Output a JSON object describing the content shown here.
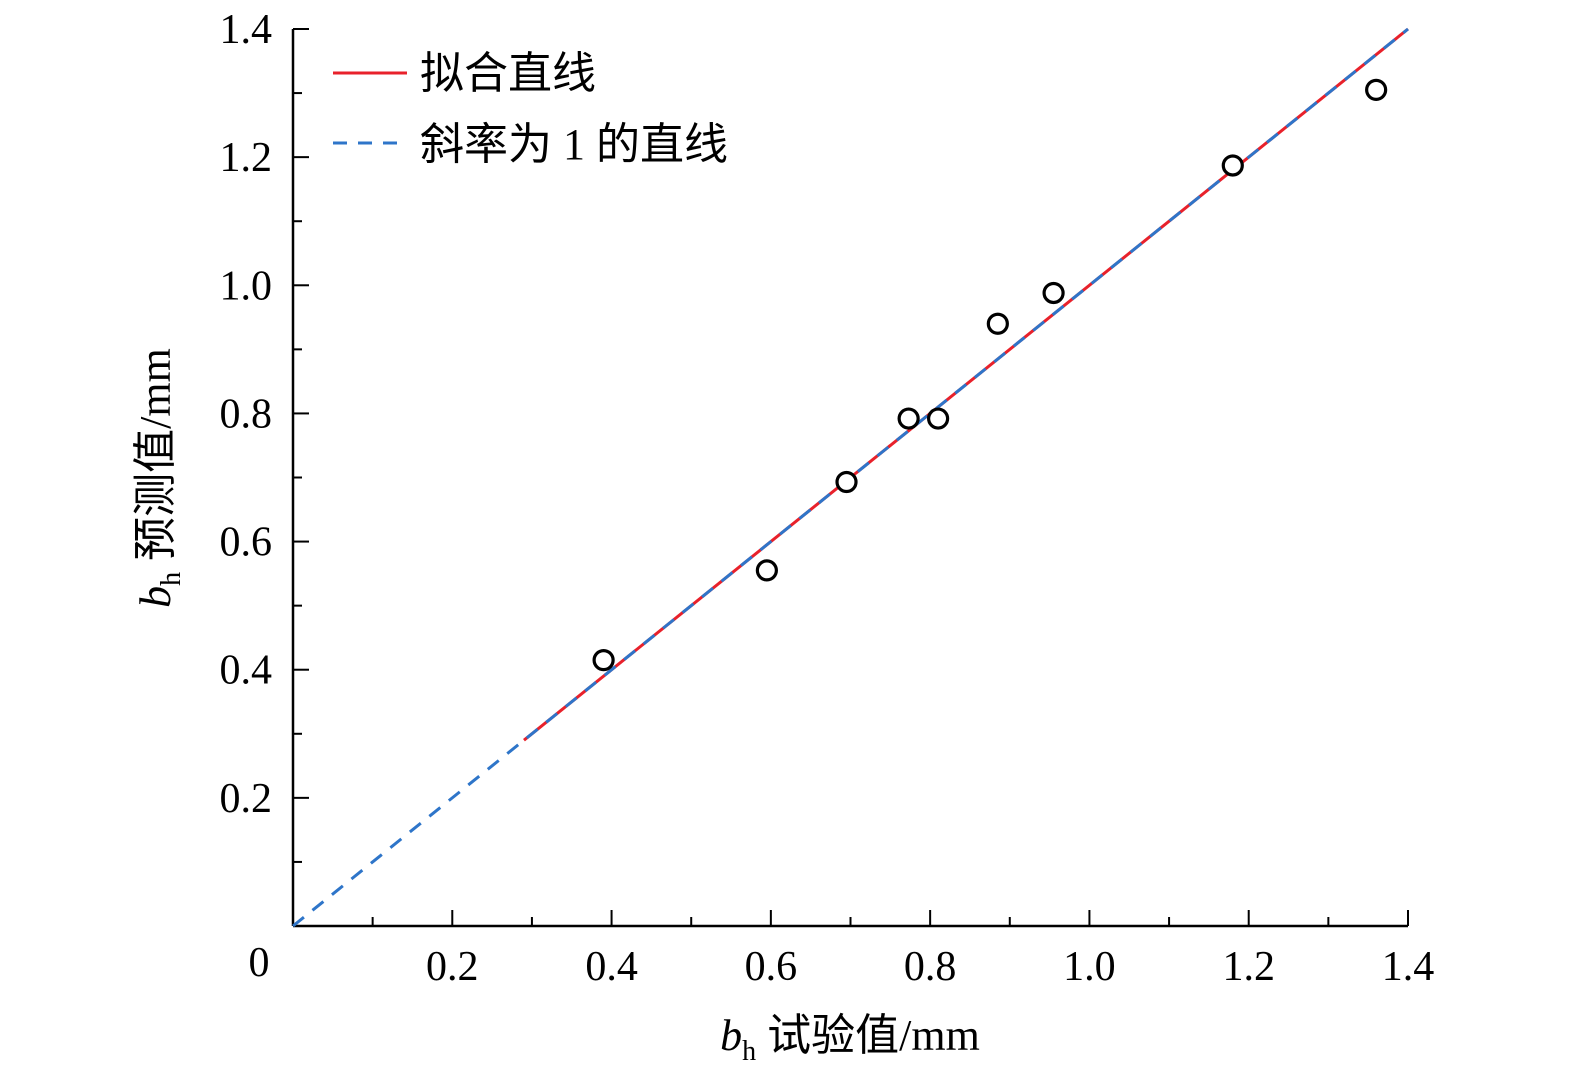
{
  "chart_data": {
    "type": "scatter",
    "title": "",
    "xlabel_prefix": "b",
    "xlabel_sub": "h",
    "xlabel_text": " 试验值/mm",
    "ylabel_prefix": "b",
    "ylabel_sub": "h",
    "ylabel_text": " 预测值/mm",
    "xlim": [
      0,
      1.4
    ],
    "ylim": [
      0,
      1.4
    ],
    "origin_label": "0",
    "x_ticks": [
      {
        "value": 0.2,
        "label": "0.2"
      },
      {
        "value": 0.4,
        "label": "0.4"
      },
      {
        "value": 0.6,
        "label": "0.6"
      },
      {
        "value": 0.8,
        "label": "0.8"
      },
      {
        "value": 1.0,
        "label": "1.0"
      },
      {
        "value": 1.2,
        "label": "1.2"
      },
      {
        "value": 1.4,
        "label": "1.4"
      }
    ],
    "y_ticks": [
      {
        "value": 0.2,
        "label": "0.2"
      },
      {
        "value": 0.4,
        "label": "0.4"
      },
      {
        "value": 0.6,
        "label": "0.6"
      },
      {
        "value": 0.8,
        "label": "0.8"
      },
      {
        "value": 1.0,
        "label": "1.0"
      },
      {
        "value": 1.2,
        "label": "1.2"
      },
      {
        "value": 1.4,
        "label": "1.4"
      }
    ],
    "minor_step": 0.1,
    "grid": false,
    "legend_position": "top-left",
    "series": [
      {
        "kind": "points",
        "x": [
          0.39,
          0.595,
          0.695,
          0.773,
          0.81,
          0.885,
          0.955,
          1.18,
          1.36
        ],
        "y": [
          0.415,
          0.555,
          0.693,
          0.792,
          0.792,
          0.94,
          0.988,
          1.187,
          1.305
        ],
        "color": "#000000"
      },
      {
        "kind": "line",
        "name": "拟合直线",
        "x": [
          0.29,
          1.4
        ],
        "y": [
          0.29,
          1.4
        ],
        "color": "#e8212b"
      },
      {
        "kind": "dashed-line",
        "name": "斜率为 1 的直线",
        "x": [
          0,
          1.4
        ],
        "y": [
          0,
          1.4
        ],
        "color": "#2e75c9"
      }
    ]
  }
}
